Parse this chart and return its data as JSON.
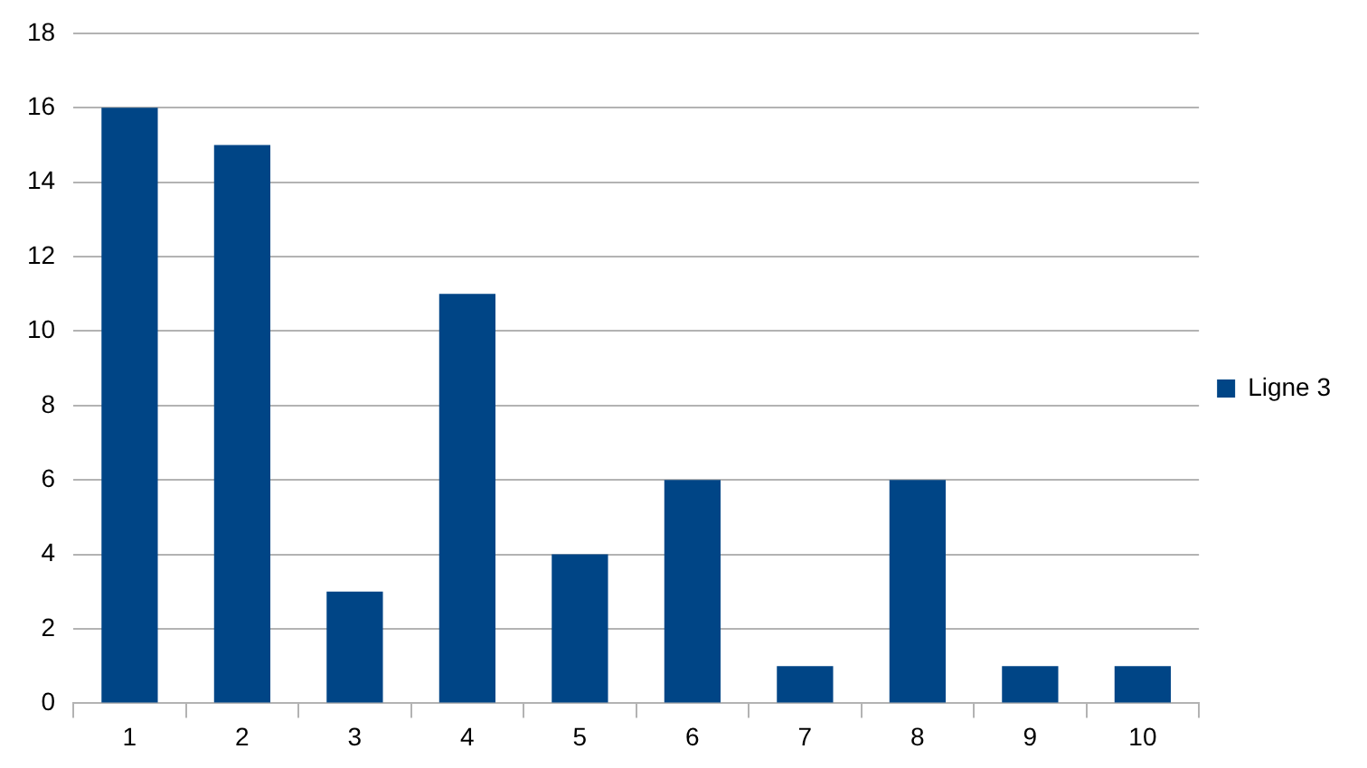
{
  "chart_data": {
    "type": "bar",
    "categories": [
      "1",
      "2",
      "3",
      "4",
      "5",
      "6",
      "7",
      "8",
      "9",
      "10"
    ],
    "series": [
      {
        "name": "Ligne 3",
        "color": "#004586",
        "values": [
          16,
          15,
          3,
          11,
          4,
          6,
          1,
          6,
          1,
          1
        ]
      }
    ],
    "ylim": [
      0,
      18
    ],
    "yticks": [
      0,
      2,
      4,
      6,
      8,
      10,
      12,
      14,
      16,
      18
    ],
    "grid": "y",
    "legend": "right"
  }
}
